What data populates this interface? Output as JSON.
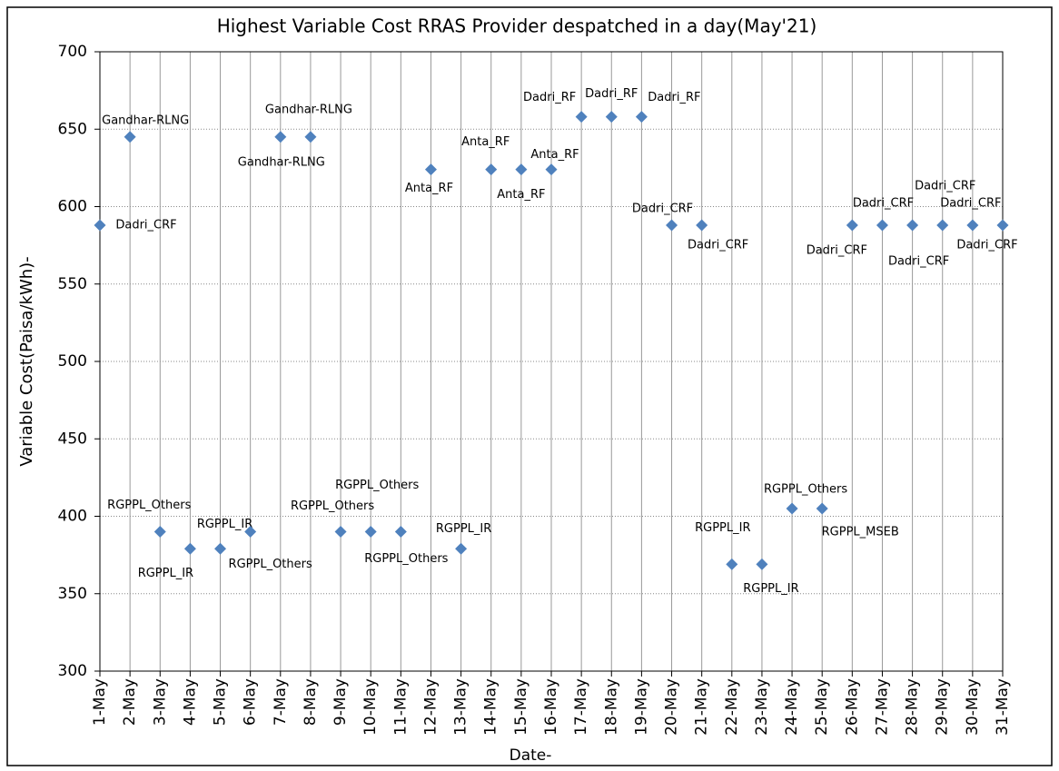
{
  "chart_data": {
    "type": "scatter",
    "title": "Highest Variable Cost RRAS Provider despatched in a day(May'21)",
    "x_label": "Date-",
    "y_label": "Variable Cost(Paisa/kWh)-",
    "categories": [
      "1-May",
      "2-May",
      "3-May",
      "4-May",
      "5-May",
      "6-May",
      "7-May",
      "8-May",
      "9-May",
      "10-May",
      "11-May",
      "12-May",
      "13-May",
      "14-May",
      "15-May",
      "16-May",
      "17-May",
      "18-May",
      "19-May",
      "20-May",
      "21-May",
      "22-May",
      "23-May",
      "24-May",
      "25-May",
      "26-May",
      "27-May",
      "28-May",
      "29-May",
      "30-May",
      "31-May"
    ],
    "values": [
      588,
      645,
      390,
      379,
      379,
      390,
      645,
      645,
      390,
      390,
      390,
      624,
      379,
      624,
      624,
      624,
      658,
      658,
      658,
      588,
      588,
      369,
      369,
      405,
      405,
      588,
      588,
      588,
      588,
      588,
      588
    ],
    "point_labels": [
      "Dadri_CRF",
      "Gandhar-RLNG",
      "RGPPL_Others",
      "RGPPL_IR",
      "RGPPL_IR",
      "RGPPL_Others",
      "Gandhar-RLNG",
      "Gandhar-RLNG",
      "RGPPL_Others",
      "RGPPL_Others",
      "RGPPL_Others",
      "Anta_RF",
      "RGPPL_IR",
      "Anta_RF",
      "Anta_RF",
      "Anta_RF",
      "Dadri_RF",
      "Dadri_RF",
      "Dadri_RF",
      "Dadri_CRF",
      "Dadri_CRF",
      "RGPPL_IR",
      "RGPPL_IR",
      "RGPPL_Others",
      "RGPPL_MSEB",
      "Dadri_CRF",
      "Dadri_CRF",
      "Dadri_CRF",
      "Dadri_CRF",
      "Dadri_CRF",
      "Dadri_CRF"
    ],
    "color": "#4f81bd",
    "ylim": [
      300,
      700
    ],
    "yticks": [
      300,
      350,
      400,
      450,
      500,
      550,
      600,
      650,
      700
    ],
    "grid": true
  }
}
